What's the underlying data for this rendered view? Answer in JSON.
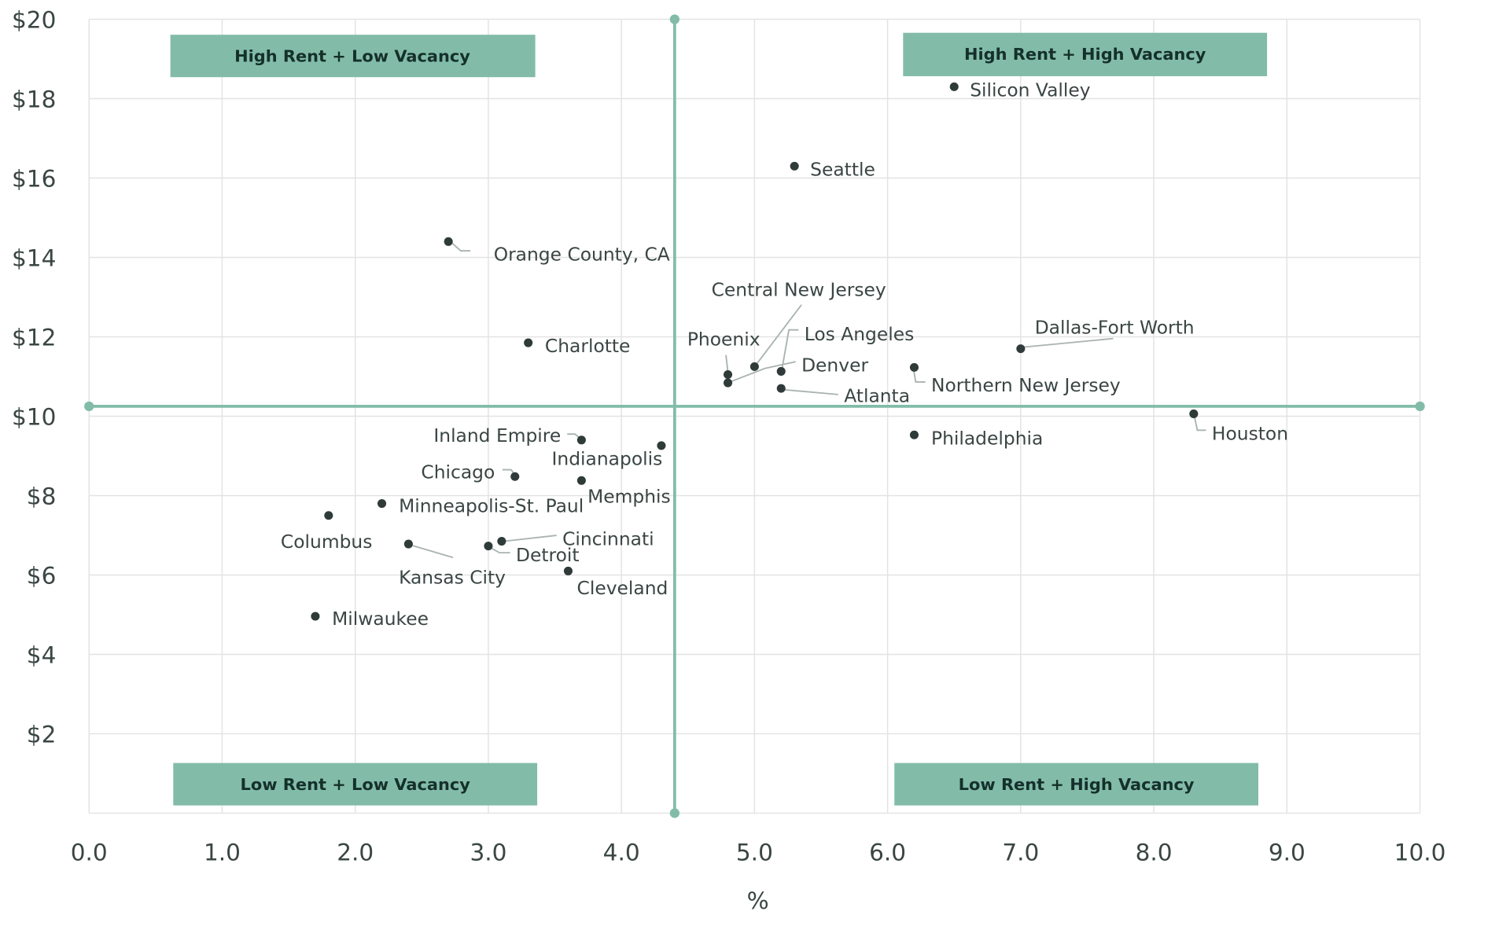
{
  "chart_data": {
    "type": "scatter",
    "title": "",
    "xlabel": "%",
    "ylabel": "",
    "xlim": [
      0,
      10
    ],
    "ylim": [
      0,
      20
    ],
    "x_ticks": [
      "0.0",
      "1.0",
      "2.0",
      "3.0",
      "4.0",
      "5.0",
      "6.0",
      "7.0",
      "8.0",
      "9.0",
      "10.0"
    ],
    "y_ticks": [
      "$2",
      "$4",
      "$6",
      "$8",
      "$10",
      "$12",
      "$14",
      "$16",
      "$18",
      "$20"
    ],
    "grid": true,
    "reference_lines": {
      "x": 4.4,
      "y": 10.25
    },
    "quadrant_labels": {
      "top_left": "High Rent + Low Vacancy",
      "top_right": "High Rent + High Vacancy",
      "bottom_left": "Low Rent + Low Vacancy",
      "bottom_right": "Low Rent + High Vacancy"
    },
    "colors": {
      "accent": "#82bca9",
      "point": "#2f3b39",
      "text": "#3a4644",
      "grid": "#e3e3e3"
    },
    "points": [
      {
        "name": "Silicon Valley",
        "x": 6.5,
        "y": 18.3
      },
      {
        "name": "Seattle",
        "x": 5.3,
        "y": 16.3
      },
      {
        "name": "Orange County, CA",
        "x": 2.7,
        "y": 14.4
      },
      {
        "name": "Charlotte",
        "x": 3.3,
        "y": 11.85
      },
      {
        "name": "Phoenix",
        "x": 4.8,
        "y": 11.05
      },
      {
        "name": "Central New Jersey",
        "x": 5.0,
        "y": 11.25
      },
      {
        "name": "Los Angeles",
        "x": 5.2,
        "y": 11.13
      },
      {
        "name": "Denver",
        "x": 4.8,
        "y": 10.84
      },
      {
        "name": "Atlanta",
        "x": 5.2,
        "y": 10.7
      },
      {
        "name": "Northern New Jersey",
        "x": 6.2,
        "y": 11.23
      },
      {
        "name": "Dallas-Fort Worth",
        "x": 7.0,
        "y": 11.7
      },
      {
        "name": "Houston",
        "x": 8.3,
        "y": 10.06
      },
      {
        "name": "Philadelphia",
        "x": 6.2,
        "y": 9.53
      },
      {
        "name": "Inland Empire",
        "x": 3.7,
        "y": 9.4
      },
      {
        "name": "Indianapolis",
        "x": 4.3,
        "y": 9.26
      },
      {
        "name": "Chicago",
        "x": 3.2,
        "y": 8.48
      },
      {
        "name": "Memphis",
        "x": 3.7,
        "y": 8.38
      },
      {
        "name": "Minneapolis-St. Paul",
        "x": 2.2,
        "y": 7.8
      },
      {
        "name": "Columbus",
        "x": 1.8,
        "y": 7.5
      },
      {
        "name": "Kansas City",
        "x": 2.4,
        "y": 6.78
      },
      {
        "name": "Detroit",
        "x": 3.0,
        "y": 6.73
      },
      {
        "name": "Cincinnati",
        "x": 3.1,
        "y": 6.85
      },
      {
        "name": "Cleveland",
        "x": 3.6,
        "y": 6.1
      },
      {
        "name": "Milwaukee",
        "x": 1.7,
        "y": 4.96
      }
    ]
  }
}
